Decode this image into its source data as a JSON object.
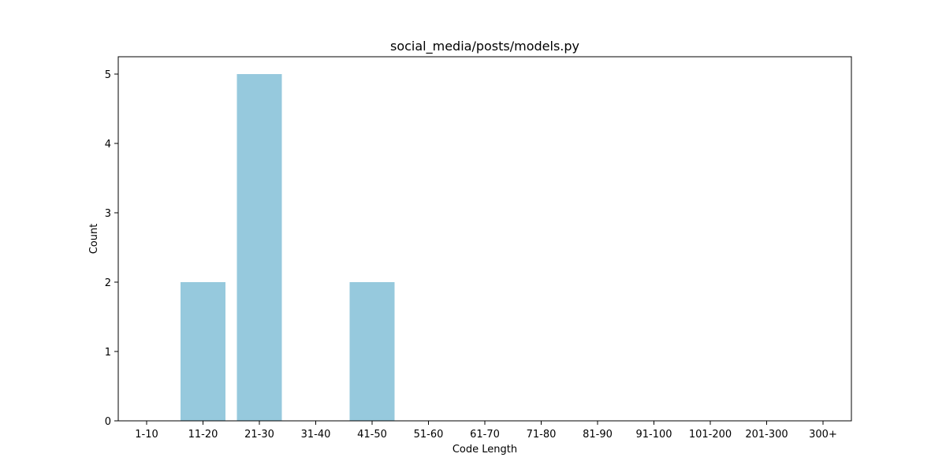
{
  "chart_data": {
    "type": "bar",
    "title": "social_media/posts/models.py",
    "xlabel": "Code Length",
    "ylabel": "Count",
    "categories": [
      "1-10",
      "11-20",
      "21-30",
      "31-40",
      "41-50",
      "51-60",
      "61-70",
      "71-80",
      "81-90",
      "91-100",
      "101-200",
      "201-300",
      "300+"
    ],
    "values": [
      0,
      2,
      5,
      0,
      2,
      0,
      0,
      0,
      0,
      0,
      0,
      0,
      0
    ],
    "ylim": [
      0,
      5.25
    ],
    "yticks": [
      0,
      1,
      2,
      3,
      4,
      5
    ],
    "bar_color": "#96c9dd",
    "grid": false,
    "legend": false
  }
}
